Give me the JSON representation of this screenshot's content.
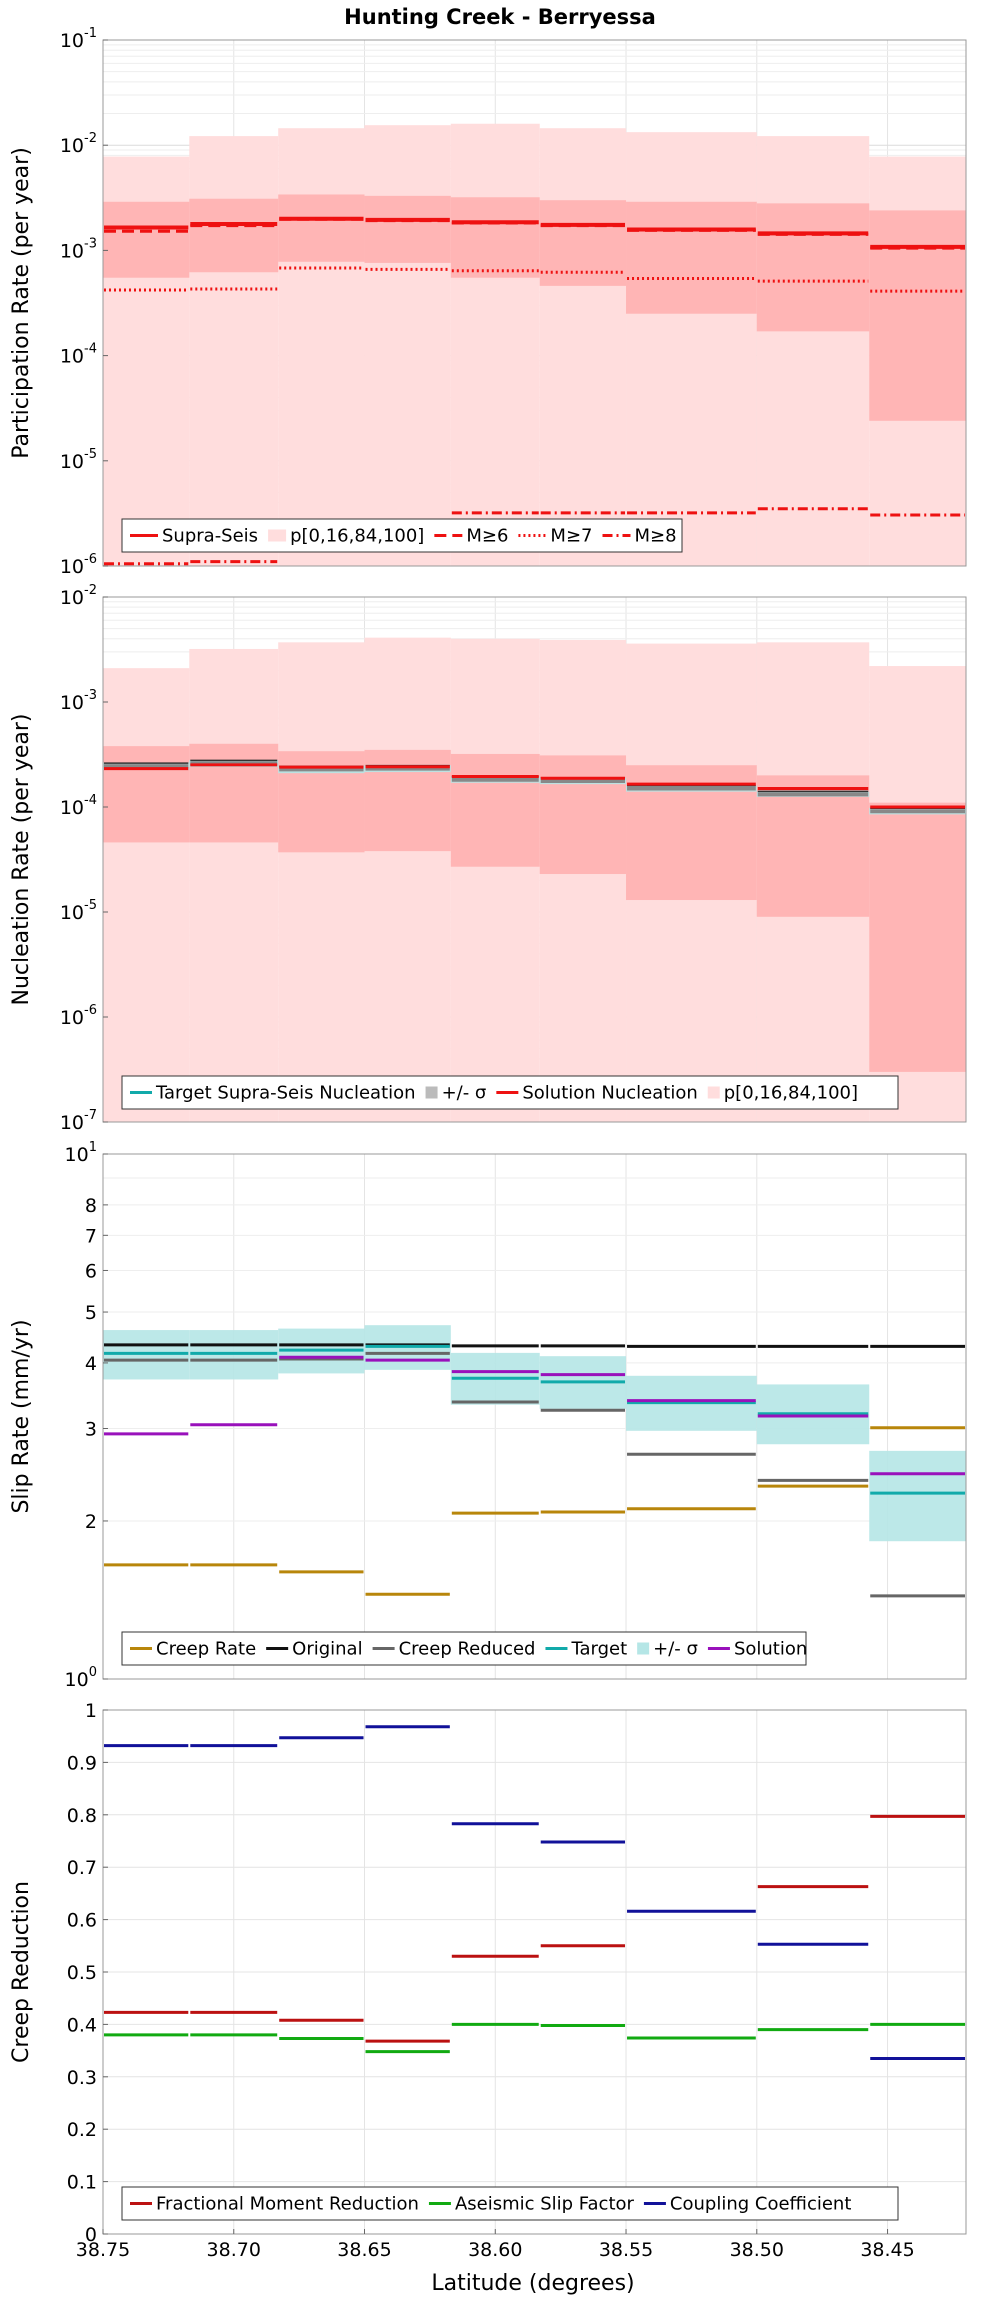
{
  "title": "Hunting Creek - Berryessa",
  "xlabel": "Latitude (degrees)",
  "x_ticks": [
    "38.75",
    "38.70",
    "38.65",
    "38.60",
    "38.55",
    "38.50",
    "38.45"
  ],
  "colors": {
    "red": "#ee1111",
    "red_band_outer": "#ffdddd",
    "red_band_inner": "#ffb5b5",
    "cyan": "#11aaaa",
    "cyan_band": "#b5e6e6",
    "gray": "#666666",
    "black": "#111111",
    "gold": "#b8860b",
    "purple": "#9911bb",
    "dark_red": "#bb1111",
    "green": "#11aa11",
    "navy": "#111199"
  },
  "chart_data": [
    {
      "type": "line",
      "name": "participation",
      "ylabel": "Participation Rate (per year)",
      "yscale": "log",
      "ylim": [
        1e-06,
        0.1
      ],
      "y_ticks": [
        {
          "base": "10",
          "exp": "-6"
        },
        {
          "base": "10",
          "exp": "-5"
        },
        {
          "base": "10",
          "exp": "-4"
        },
        {
          "base": "10",
          "exp": "-3"
        },
        {
          "base": "10",
          "exp": "-2"
        },
        {
          "base": "10",
          "exp": "-1"
        }
      ],
      "xlim": [
        38.75,
        38.42
      ],
      "bins": [
        [
          38.75,
          38.717
        ],
        [
          38.717,
          38.683
        ],
        [
          38.683,
          38.65
        ],
        [
          38.65,
          38.617
        ],
        [
          38.617,
          38.583
        ],
        [
          38.583,
          38.55
        ],
        [
          38.55,
          38.5
        ],
        [
          38.5,
          38.457
        ],
        [
          38.457,
          38.42
        ]
      ],
      "bands": [
        {
          "kind": "outer",
          "low": [
            1e-06,
            1e-06,
            1e-06,
            1e-06,
            1e-06,
            1e-06,
            1e-06,
            1e-06,
            1e-06
          ],
          "high": [
            0.0078,
            0.0122,
            0.0145,
            0.0155,
            0.016,
            0.0145,
            0.0133,
            0.0122,
            0.0078
          ]
        },
        {
          "kind": "inner",
          "low": [
            0.00055,
            0.00062,
            0.00078,
            0.00076,
            0.00055,
            0.00046,
            0.00025,
            0.00017,
            2.4e-05
          ],
          "high": [
            0.0029,
            0.0031,
            0.0034,
            0.0033,
            0.0032,
            0.003,
            0.0029,
            0.0028,
            0.0024
          ]
        }
      ],
      "series": [
        {
          "name": "Supra-Seis",
          "style": "solid",
          "width": 4,
          "values": [
            0.00165,
            0.00178,
            0.002,
            0.00195,
            0.00185,
            0.00175,
            0.00158,
            0.00145,
            0.00108
          ]
        },
        {
          "name": "M≥6",
          "style": "dashed",
          "width": 3,
          "values": [
            0.00152,
            0.00172,
            0.00198,
            0.00192,
            0.00182,
            0.00172,
            0.00155,
            0.00142,
            0.00105
          ]
        },
        {
          "name": "M≥7",
          "style": "dotted",
          "width": 3,
          "values": [
            0.00042,
            0.00043,
            0.00068,
            0.00066,
            0.00064,
            0.00062,
            0.00054,
            0.00051,
            0.00041
          ]
        },
        {
          "name": "M≥8",
          "style": "dashdot",
          "width": 3,
          "values": [
            1.05e-06,
            1.1e-06,
            null,
            null,
            3.2e-06,
            3.2e-06,
            3.2e-06,
            3.5e-06,
            3.05e-06
          ]
        }
      ],
      "legend": [
        "Supra-Seis",
        "p[0,16,84,100]",
        "M≥6",
        "M≥7",
        "M≥8"
      ],
      "legend_position": "bottom-left"
    },
    {
      "type": "line",
      "name": "nucleation",
      "ylabel": "Nucleation Rate (per year)",
      "yscale": "log",
      "ylim": [
        1e-07,
        0.01
      ],
      "y_ticks": [
        {
          "base": "10",
          "exp": "-7"
        },
        {
          "base": "10",
          "exp": "-6"
        },
        {
          "base": "10",
          "exp": "-5"
        },
        {
          "base": "10",
          "exp": "-4"
        },
        {
          "base": "10",
          "exp": "-3"
        },
        {
          "base": "10",
          "exp": "-2"
        }
      ],
      "xlim": [
        38.75,
        38.42
      ],
      "bins": [
        [
          38.75,
          38.717
        ],
        [
          38.717,
          38.683
        ],
        [
          38.683,
          38.65
        ],
        [
          38.65,
          38.617
        ],
        [
          38.617,
          38.583
        ],
        [
          38.583,
          38.55
        ],
        [
          38.55,
          38.5
        ],
        [
          38.5,
          38.457
        ],
        [
          38.457,
          38.42
        ]
      ],
      "bands": [
        {
          "kind": "outer",
          "low": [
            1e-07,
            1e-07,
            1e-07,
            1e-07,
            1e-07,
            1e-07,
            1e-07,
            1e-07,
            1e-07
          ],
          "high": [
            0.0021,
            0.0032,
            0.0037,
            0.0041,
            0.004,
            0.0039,
            0.0036,
            0.0037,
            0.0022
          ]
        },
        {
          "kind": "inner",
          "low": [
            4.6e-05,
            4.6e-05,
            3.7e-05,
            3.8e-05,
            2.7e-05,
            2.3e-05,
            1.3e-05,
            9e-06,
            3e-07
          ]
        },
        {
          "kind": "cyan",
          "low": [
            0.000225,
            0.00024,
            0.00021,
            0.000215,
            0.00017,
            0.000165,
            0.00014,
            0.000125,
            8.5e-05
          ],
          "high": [
            0.000265,
            0.00028,
            0.000245,
            0.00025,
            0.000195,
            0.00019,
            0.00016,
            0.00014,
            9.8e-05
          ]
        }
      ],
      "inner_high": [
        0.00038,
        0.0004,
        0.00034,
        0.00035,
        0.00032,
        0.00031,
        0.00025,
        0.0002,
        0.00011
      ],
      "series": [
        {
          "name": "Target Supra-Seis Nucleation",
          "style": "solid-gray",
          "width": 4,
          "values": [
            0.000245,
            0.00026,
            0.000228,
            0.000232,
            0.000182,
            0.000177,
            0.00015,
            0.000132,
            9.1e-05
          ]
        },
        {
          "name": "Solution Nucleation",
          "style": "solid",
          "width": 3,
          "values": [
            0.000232,
            0.000252,
            0.00024,
            0.000242,
            0.000195,
            0.000188,
            0.000165,
            0.00015,
            0.0001
          ]
        }
      ],
      "legend": [
        "Target Supra-Seis Nucleation",
        "+/- σ",
        "Solution Nucleation",
        "p[0,16,84,100]"
      ],
      "legend_position": "bottom-left"
    },
    {
      "type": "line",
      "name": "slip",
      "ylabel": "Slip Rate (mm/yr)",
      "yscale": "log",
      "ylim": [
        1,
        10
      ],
      "y_ticks": [
        {
          "base": "10",
          "exp": "0",
          "v": 1
        },
        {
          "base": "2",
          "v": 2
        },
        {
          "base": "3",
          "v": 3
        },
        {
          "base": "4",
          "v": 4
        },
        {
          "base": "5",
          "v": 5
        },
        {
          "base": "6",
          "v": 6
        },
        {
          "base": "7",
          "v": 7
        },
        {
          "base": "8",
          "v": 8
        },
        {
          "base": "10",
          "exp": "1",
          "v": 10
        }
      ],
      "xlim": [
        38.75,
        38.42
      ],
      "bins": [
        [
          38.75,
          38.717
        ],
        [
          38.717,
          38.683
        ],
        [
          38.683,
          38.65
        ],
        [
          38.65,
          38.617
        ],
        [
          38.617,
          38.583
        ],
        [
          38.583,
          38.55
        ],
        [
          38.55,
          38.5
        ],
        [
          38.5,
          38.457
        ],
        [
          38.457,
          38.42
        ]
      ],
      "bands": [
        {
          "kind": "cyan",
          "low": [
            3.72,
            3.72,
            3.82,
            3.88,
            3.33,
            3.27,
            2.97,
            2.8,
            1.83
          ],
          "high": [
            4.62,
            4.62,
            4.65,
            4.72,
            4.18,
            4.12,
            3.78,
            3.64,
            2.72
          ]
        }
      ],
      "series": [
        {
          "name": "Creep Rate",
          "color": "gold",
          "width": 3,
          "values": [
            1.65,
            1.65,
            1.6,
            1.45,
            2.07,
            2.08,
            2.11,
            2.33,
            3.01
          ]
        },
        {
          "name": "Original",
          "color": "black",
          "width": 3,
          "values": [
            4.33,
            4.33,
            4.33,
            4.33,
            4.31,
            4.31,
            4.3,
            4.3,
            4.3
          ]
        },
        {
          "name": "Creep Reduced",
          "color": "gray",
          "width": 3,
          "values": [
            4.05,
            4.05,
            4.07,
            4.17,
            3.37,
            3.25,
            2.68,
            2.39,
            1.44
          ]
        },
        {
          "name": "Target",
          "color": "cyan",
          "width": 3,
          "values": [
            4.17,
            4.17,
            4.23,
            4.3,
            3.74,
            3.68,
            3.36,
            3.2,
            2.26
          ]
        },
        {
          "name": "Solution",
          "color": "purple",
          "width": 3,
          "values": [
            2.93,
            3.05,
            4.1,
            4.05,
            3.85,
            3.8,
            3.39,
            3.17,
            2.46
          ]
        }
      ],
      "legend": [
        "Creep Rate",
        "Original",
        "Creep Reduced",
        "Target",
        "+/- σ",
        "Solution"
      ],
      "legend_position": "bottom-left"
    },
    {
      "type": "line",
      "name": "creep",
      "ylabel": "Creep Reduction",
      "yscale": "linear",
      "ylim": [
        0,
        1
      ],
      "y_ticks": [
        {
          "base": "0"
        },
        {
          "base": "0.1"
        },
        {
          "base": "0.2"
        },
        {
          "base": "0.3"
        },
        {
          "base": "0.4"
        },
        {
          "base": "0.5"
        },
        {
          "base": "0.6"
        },
        {
          "base": "0.7"
        },
        {
          "base": "0.8"
        },
        {
          "base": "0.9"
        },
        {
          "base": "1"
        }
      ],
      "xlim": [
        38.75,
        38.42
      ],
      "bins": [
        [
          38.75,
          38.717
        ],
        [
          38.717,
          38.683
        ],
        [
          38.683,
          38.65
        ],
        [
          38.65,
          38.617
        ],
        [
          38.617,
          38.583
        ],
        [
          38.583,
          38.55
        ],
        [
          38.55,
          38.5
        ],
        [
          38.5,
          38.457
        ],
        [
          38.457,
          38.42
        ]
      ],
      "series": [
        {
          "name": "Fractional Moment Reduction",
          "color": "dark_red",
          "width": 3,
          "values": [
            0.423,
            0.423,
            0.408,
            0.368,
            0.53,
            0.55,
            null,
            0.663,
            0.797
          ]
        },
        {
          "name": "Aseismic Slip Factor",
          "color": "green",
          "width": 3,
          "values": [
            0.38,
            0.38,
            0.373,
            0.348,
            0.4,
            0.398,
            0.374,
            0.39,
            0.4
          ]
        },
        {
          "name": "Coupling Coefficient",
          "color": "navy",
          "width": 3,
          "values": [
            0.932,
            0.932,
            0.947,
            0.968,
            0.783,
            0.748,
            0.616,
            0.553,
            0.335
          ]
        }
      ],
      "legend": [
        "Fractional Moment Reduction",
        "Aseismic Slip Factor",
        "Coupling Coefficient"
      ],
      "legend_position": "bottom-left"
    }
  ]
}
